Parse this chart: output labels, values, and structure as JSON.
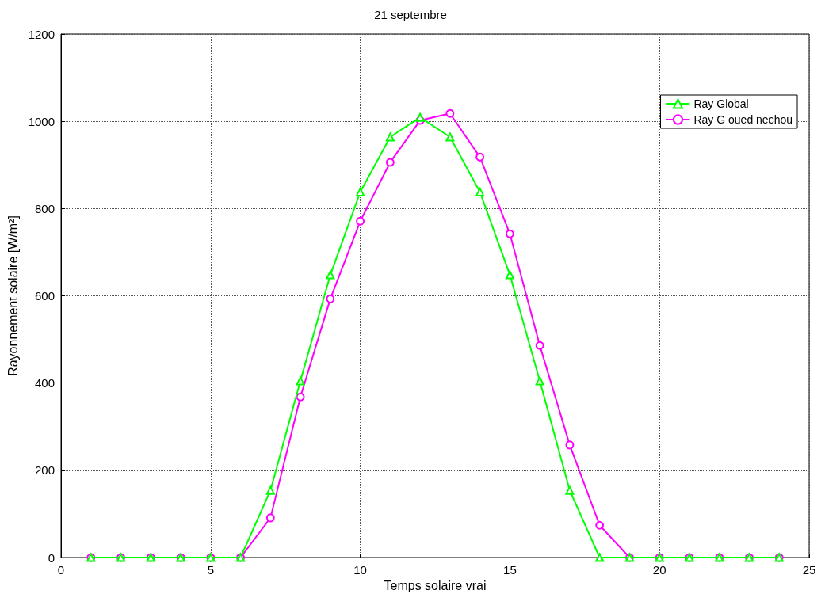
{
  "chart_data": {
    "type": "line",
    "title": "21 septembre",
    "xlabel": "Temps solaire vrai",
    "ylabel": "Rayonnement solaire [W/m²]",
    "x": [
      1,
      2,
      3,
      4,
      5,
      6,
      7,
      8,
      9,
      10,
      11,
      12,
      13,
      14,
      15,
      16,
      17,
      18,
      19,
      20,
      21,
      22,
      23,
      24
    ],
    "series": [
      {
        "name": "Ray Global",
        "color": "#00ff00",
        "marker": "triangle",
        "values": [
          0,
          0,
          0,
          0,
          0,
          0,
          154,
          405,
          648,
          838,
          964,
          1009,
          964,
          838,
          648,
          405,
          154,
          0,
          0,
          0,
          0,
          0,
          0,
          0
        ]
      },
      {
        "name": "Ray G oued nechou",
        "color": "#ff00ff",
        "marker": "circle",
        "values": [
          0,
          0,
          0,
          0,
          0,
          0,
          91,
          368,
          593,
          771,
          906,
          1002,
          1018,
          918,
          742,
          486,
          258,
          74,
          0,
          0,
          0,
          0,
          0,
          0
        ]
      }
    ],
    "xlim": [
      0,
      25
    ],
    "xticks": [
      0,
      5,
      10,
      15,
      20,
      25
    ],
    "ylim": [
      0,
      1200
    ],
    "yticks": [
      0,
      200,
      400,
      600,
      800,
      1000,
      1200
    ],
    "grid": true,
    "legend": "top right",
    "line_style": "solid"
  }
}
